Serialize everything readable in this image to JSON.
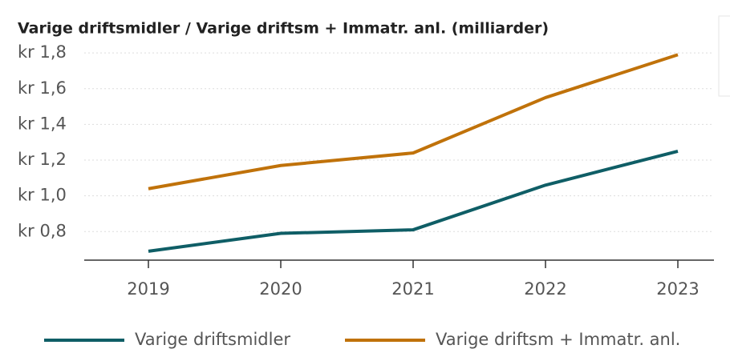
{
  "chart_data": {
    "type": "line",
    "title": "Varige driftsmidler / Varige driftsm + Immatr. anl. (milliarder)",
    "categories": [
      "2019",
      "2020",
      "2021",
      "2022",
      "2023"
    ],
    "series": [
      {
        "name": "Varige driftsmidler",
        "color": "#0f5e66",
        "values": [
          0.69,
          0.79,
          0.81,
          1.06,
          1.25
        ]
      },
      {
        "name": "Varige driftsm + Immatr. anl.",
        "color": "#c0720a",
        "values": [
          1.04,
          1.17,
          1.24,
          1.55,
          1.79
        ]
      }
    ],
    "ylim": [
      0.64,
      1.85
    ],
    "yticks": [
      {
        "value": 0.8,
        "label": "kr 0,8"
      },
      {
        "value": 1.0,
        "label": "kr 1,0"
      },
      {
        "value": 1.2,
        "label": "kr 1,2"
      },
      {
        "value": 1.4,
        "label": "kr 1,4"
      },
      {
        "value": 1.6,
        "label": "kr 1,6"
      },
      {
        "value": 1.8,
        "label": "kr 1,8"
      }
    ],
    "grid": true
  }
}
